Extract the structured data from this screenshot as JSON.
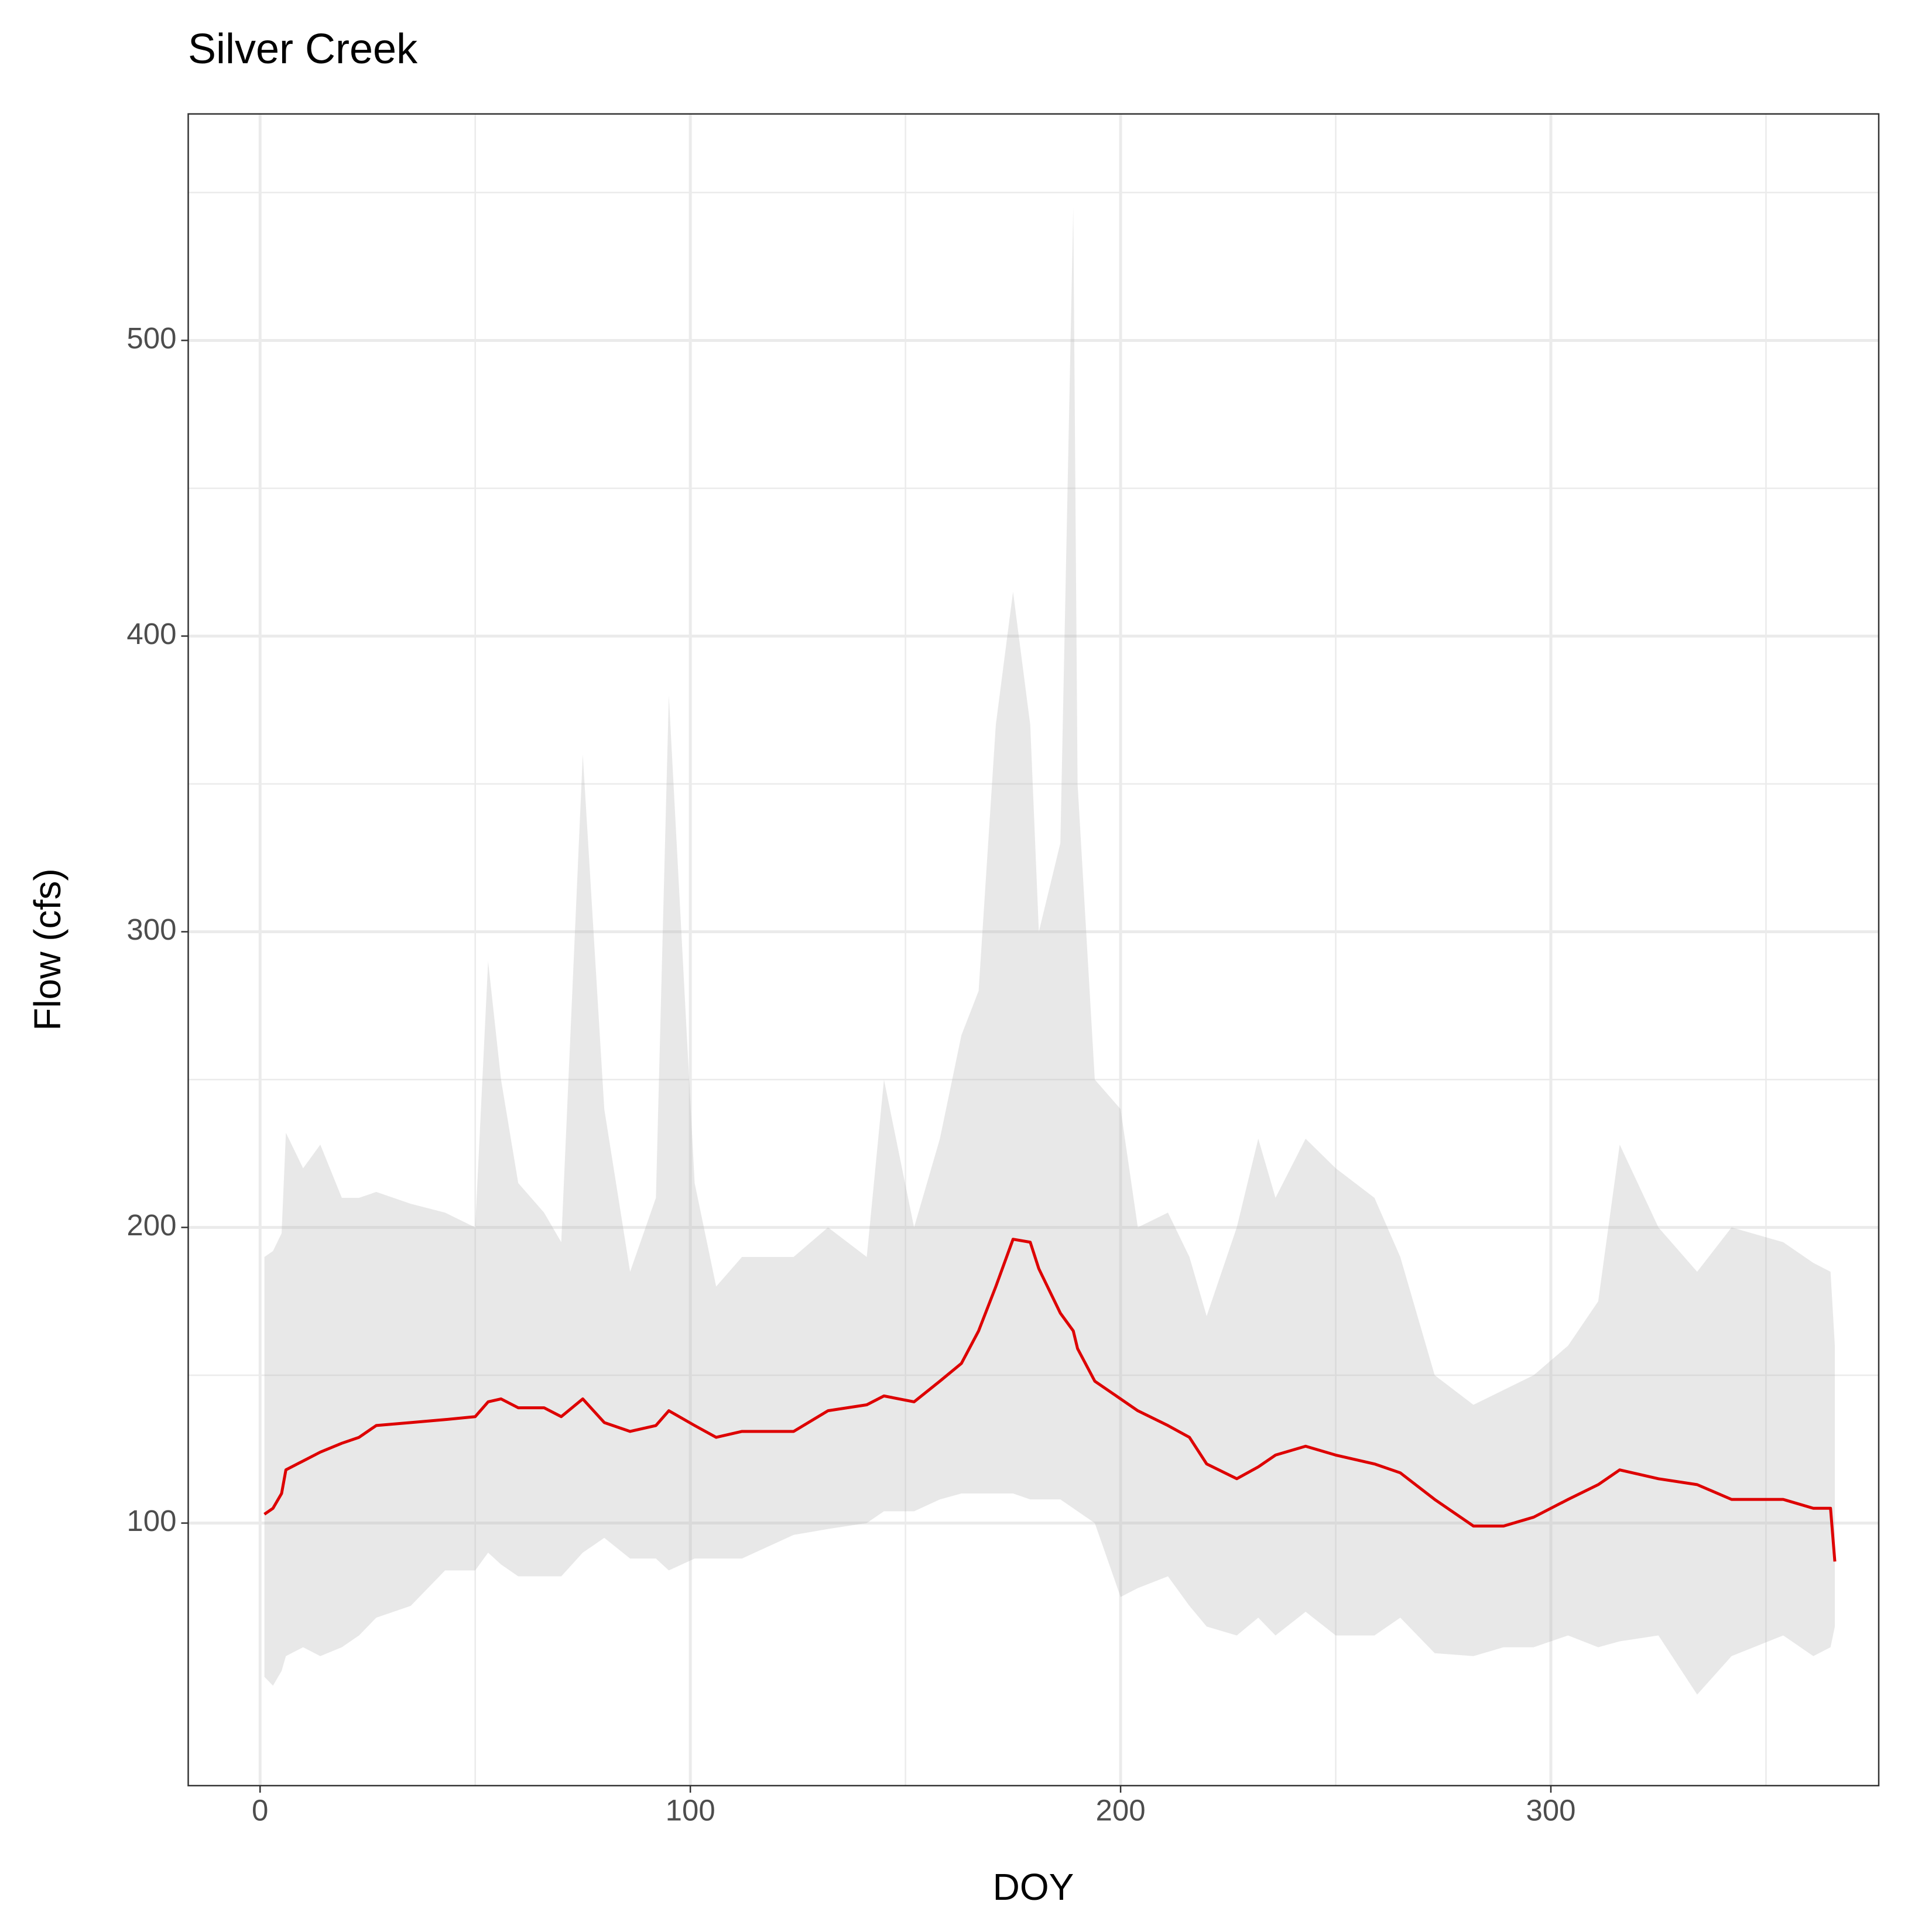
{
  "chart_data": {
    "type": "line",
    "title": "Silver Creek",
    "x_label": "DOY",
    "y_label": "Flow (cfs)",
    "x": [
      1,
      3,
      5,
      6,
      10,
      14,
      19,
      23,
      27,
      35,
      43,
      50,
      53,
      56,
      60,
      66,
      70,
      75,
      80,
      86,
      92,
      95,
      101,
      106,
      112,
      124,
      132,
      141,
      145,
      152,
      158,
      163,
      167,
      171,
      175,
      179,
      181,
      186,
      189,
      190,
      194,
      200,
      204,
      211,
      216,
      220,
      227,
      232,
      236,
      243,
      250,
      259,
      265,
      273,
      282,
      289,
      296,
      304,
      311,
      316,
      325,
      334,
      342,
      354,
      361,
      365,
      366
    ],
    "series": [
      {
        "type": "area",
        "color": "#b3b3b3",
        "lower": [
          48,
          45,
          50,
          55,
          58,
          55,
          58,
          62,
          68,
          72,
          84,
          84,
          90,
          86,
          82,
          82,
          82,
          90,
          95,
          88,
          88,
          84,
          88,
          88,
          88,
          96,
          98,
          100,
          104,
          104,
          108,
          110,
          110,
          110,
          110,
          108,
          108,
          108,
          105,
          104,
          100,
          75,
          78,
          82,
          72,
          65,
          62,
          68,
          62,
          70,
          62,
          62,
          68,
          56,
          55,
          58,
          58,
          62,
          58,
          60,
          62,
          42,
          55,
          62,
          55,
          58,
          65
        ],
        "upper": [
          190,
          192,
          198,
          232,
          220,
          228,
          210,
          210,
          212,
          208,
          205,
          200,
          290,
          250,
          215,
          205,
          195,
          360,
          240,
          185,
          210,
          380,
          215,
          180,
          190,
          190,
          200,
          190,
          250,
          200,
          230,
          265,
          280,
          370,
          415,
          370,
          300,
          330,
          545,
          350,
          250,
          240,
          200,
          205,
          190,
          170,
          200,
          230,
          210,
          230,
          220,
          210,
          190,
          150,
          140,
          145,
          150,
          160,
          175,
          228,
          200,
          185,
          200,
          195,
          188,
          185,
          160
        ]
      },
      {
        "type": "line",
        "color": "#dd0000",
        "values": [
          103,
          105,
          110,
          118,
          121,
          124,
          127,
          129,
          133,
          134,
          135,
          136,
          141,
          142,
          139,
          139,
          136,
          142,
          134,
          131,
          133,
          138,
          133,
          129,
          131,
          131,
          138,
          140,
          143,
          141,
          148,
          154,
          165,
          180,
          196,
          195,
          186,
          171,
          165,
          159,
          148,
          142,
          138,
          133,
          129,
          120,
          115,
          119,
          123,
          126,
          123,
          120,
          117,
          108,
          99,
          99,
          102,
          108,
          113,
          118,
          115,
          113,
          108,
          108,
          105,
          105,
          87
        ]
      }
    ],
    "xlim": [
      -16.7,
      376.2
    ],
    "ylim": [
      11.2,
      576.6
    ],
    "xticks": [
      0,
      100,
      200,
      300
    ],
    "yticks": [
      100,
      200,
      300,
      400,
      500
    ],
    "xminor": [
      50,
      150,
      250,
      350
    ],
    "yminor": [
      150,
      250,
      350,
      450,
      550
    ],
    "grid": true
  }
}
